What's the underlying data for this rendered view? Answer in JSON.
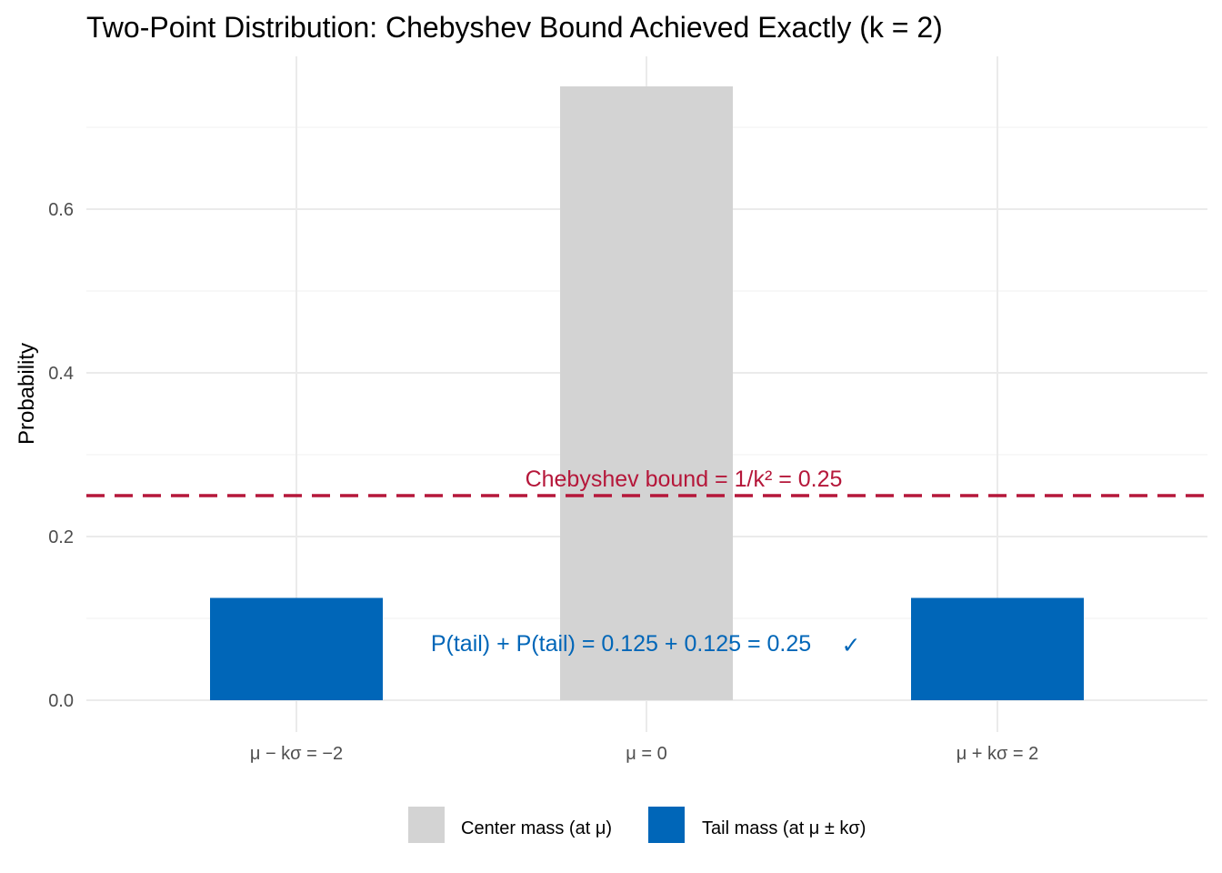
{
  "chart_data": {
    "type": "bar",
    "title": "Two-Point Distribution: Chebyshev Bound Achieved Exactly (k = 2)",
    "xlabel": "",
    "ylabel": "Probability",
    "ylim": [
      0,
      0.75
    ],
    "y_ticks": [
      "0.0",
      "0.2",
      "0.4",
      "0.6"
    ],
    "y_tick_values": [
      0,
      0.2,
      0.4,
      0.6
    ],
    "categories": [
      "μ − kσ = −2",
      "μ = 0",
      "μ + kσ = 2"
    ],
    "values": [
      0.125,
      0.75,
      0.125
    ],
    "bar_groups": [
      "tail",
      "center",
      "tail"
    ],
    "series": [
      {
        "name": "Center mass (at μ)",
        "key": "center",
        "color": "#d3d3d3"
      },
      {
        "name": "Tail mass (at μ ± kσ)",
        "key": "tail",
        "color": "#0066b8"
      }
    ],
    "reference_line": {
      "value": 0.25,
      "label": "Chebyshev bound = 1/k² = 0.25",
      "color": "#b5173a",
      "style": "dashed"
    },
    "annotation": {
      "text": "P(tail) + P(tail) = 0.125 + 0.125 = 0.25",
      "mark": "✓",
      "y": 0.07,
      "color": "#0066b8"
    },
    "grid": true,
    "legend_position": "bottom"
  }
}
